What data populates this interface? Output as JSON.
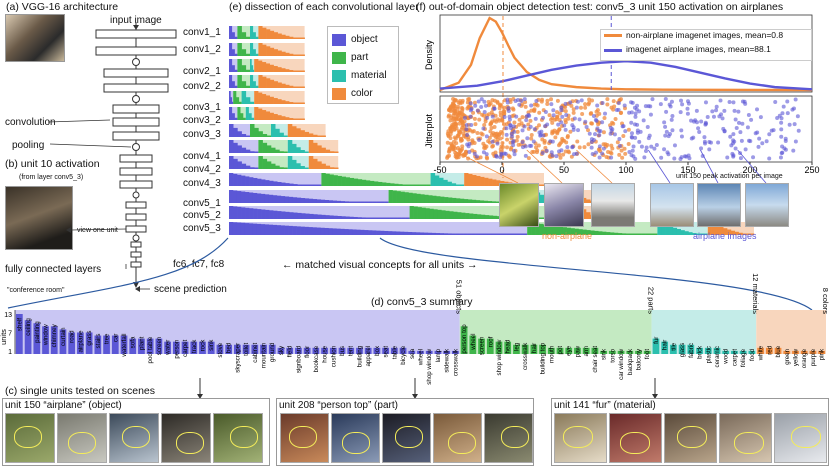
{
  "colors": {
    "object": "#5b57d6",
    "object_light": "#c9c6f3",
    "part": "#3fb54a",
    "part_light": "#c4eac2",
    "material": "#2bbfae",
    "material_light": "#c4ece8",
    "color": "#f08a3c",
    "color_light": "#f8d6bd",
    "curve": "#2c5aa0"
  },
  "panel_a": {
    "title": "(a) VGG-16 architecture",
    "input_label": "input image",
    "convolution_label": "convolution",
    "pooling_label": "pooling",
    "layers": [
      "conv1_1",
      "conv1_2",
      "conv2_1",
      "conv2_2",
      "conv3_1",
      "conv3_2",
      "conv3_3",
      "conv4_1",
      "conv4_2",
      "conv4_3",
      "conv5_1",
      "conv5_2",
      "conv5_3"
    ],
    "fc_label": "fully connected layers",
    "fc_names": "fc6, fc7, fc8",
    "scene_label": "scene prediction",
    "scene_value": "\"conference room\""
  },
  "panel_b": {
    "title": "(b) unit 10 activation",
    "subtitle": "(from layer conv5_3)",
    "view_label": "view one unit"
  },
  "panel_e": {
    "title": "(e) dissection of each convolutional layer",
    "legend": [
      "object",
      "part",
      "material",
      "color"
    ],
    "caption": "← matched visual concepts for all units →",
    "bars": [
      {
        "object": 0.02,
        "part": 0.03,
        "material": 0.02,
        "color": 0.11
      },
      {
        "object": 0.02,
        "part": 0.03,
        "material": 0.02,
        "color": 0.11
      },
      {
        "object": 0.02,
        "part": 0.03,
        "material": 0.01,
        "color": 0.12
      },
      {
        "object": 0.02,
        "part": 0.03,
        "material": 0.02,
        "color": 0.11
      },
      {
        "object": 0.01,
        "part": 0.02,
        "material": 0.03,
        "color": 0.12
      },
      {
        "object": 0.02,
        "part": 0.02,
        "material": 0.02,
        "color": 0.12
      },
      {
        "object": 0.05,
        "part": 0.05,
        "material": 0.04,
        "color": 0.09
      },
      {
        "object": 0.07,
        "part": 0.07,
        "material": 0.05,
        "color": 0.07
      },
      {
        "object": 0.07,
        "part": 0.07,
        "material": 0.05,
        "color": 0.07
      },
      {
        "object": 0.22,
        "part": 0.26,
        "material": 0.08,
        "color": 0.19
      },
      {
        "object": 0.38,
        "part": 0.34,
        "material": 0.08,
        "color": 0.09
      },
      {
        "object": 0.43,
        "part": 0.34,
        "material": 0.06,
        "color": 0.06
      },
      {
        "object": 0.71,
        "part": 0.31,
        "material": 0.12,
        "color": 0.11
      }
    ]
  },
  "panel_f": {
    "title": "(f) out-of-domain object detection test: conv5_3 unit 150 activation on airplanes",
    "density_label": "Density",
    "jitter_label": "Jitterplot",
    "legend": [
      "non-airplane imagenet images, mean=0.8",
      "imagenet airplane images, mean=88.1"
    ],
    "x_ticks": [
      "-50",
      "0",
      "50",
      "100",
      "150",
      "200",
      "250"
    ],
    "x_caption": "unit 150 peak activation per image",
    "non_airplane_label": "non-airplane",
    "airplane_label": "airplane images"
  },
  "panel_d": {
    "title": "(d) conv5_3 summary",
    "ylabel": "units",
    "y_ticks": [
      "13",
      "7",
      "1"
    ],
    "group_labels": [
      "51 objects",
      "22 parts",
      "12 materials",
      "8 colors"
    ],
    "objects": [
      {
        "label": "shelf",
        "units": 13
      },
      {
        "label": "ceiling",
        "units": 11
      },
      {
        "label": "painting",
        "units": 10
      },
      {
        "label": "window",
        "units": 9
      },
      {
        "label": "chimney",
        "units": 9
      },
      {
        "label": "curtain",
        "units": 8
      },
      {
        "label": "road",
        "units": 7
      },
      {
        "label": "airplane",
        "units": 7
      },
      {
        "label": "grass",
        "units": 7
      },
      {
        "label": "stairs",
        "units": 6
      },
      {
        "label": "tree",
        "units": 6
      },
      {
        "label": "car",
        "units": 6
      },
      {
        "label": "waterfall",
        "units": 6
      },
      {
        "label": "sofa",
        "units": 5
      },
      {
        "label": "plant",
        "units": 5
      },
      {
        "label": "pool table",
        "units": 5
      },
      {
        "label": "screen",
        "units": 5
      },
      {
        "label": "water",
        "units": 4
      },
      {
        "label": "person",
        "units": 4
      },
      {
        "label": "carpet",
        "units": 4
      },
      {
        "label": "track",
        "units": 4
      },
      {
        "label": "rock",
        "units": 4
      },
      {
        "label": "sink",
        "units": 4
      },
      {
        "label": "stove",
        "units": 3
      },
      {
        "label": "bed",
        "units": 3
      },
      {
        "label": "skyscraper",
        "units": 3
      },
      {
        "label": "toilet",
        "units": 3
      },
      {
        "label": "cabinet",
        "units": 3
      },
      {
        "label": "mountain",
        "units": 3
      },
      {
        "label": "ground",
        "units": 3
      },
      {
        "label": "sky",
        "units": 2
      },
      {
        "label": "field",
        "units": 2
      },
      {
        "label": "signboard",
        "units": 2
      },
      {
        "label": "floor",
        "units": 2
      },
      {
        "label": "bookcase",
        "units": 2
      },
      {
        "label": "house",
        "units": 2
      },
      {
        "label": "cushion",
        "units": 2
      },
      {
        "label": "bus",
        "units": 2
      },
      {
        "label": "tent",
        "units": 2
      },
      {
        "label": "building",
        "units": 2
      },
      {
        "label": "apparel",
        "units": 2
      },
      {
        "label": "box",
        "units": 2
      },
      {
        "label": "seat",
        "units": 2
      },
      {
        "label": "table",
        "units": 2
      },
      {
        "label": "bicycle",
        "units": 2
      },
      {
        "label": "sea",
        "units": 1
      },
      {
        "label": "wheel",
        "units": 1
      },
      {
        "label": "shop window",
        "units": 1
      },
      {
        "label": "lamp",
        "units": 1
      },
      {
        "label": "sidewalk",
        "units": 1
      },
      {
        "label": "crosswalk",
        "units": 1
      }
    ],
    "parts": [
      {
        "label": "person top",
        "units": 9
      },
      {
        "label": "wheel",
        "units": 6
      },
      {
        "label": "screen",
        "units": 5
      },
      {
        "label": "roof",
        "units": 5
      },
      {
        "label": "shop window",
        "units": 4
      },
      {
        "label": "head",
        "units": 4
      },
      {
        "label": "leg",
        "units": 3
      },
      {
        "label": "crosswalk",
        "units": 3
      },
      {
        "label": "hair",
        "units": 3
      },
      {
        "label": "building top",
        "units": 3
      },
      {
        "label": "mouth",
        "units": 2
      },
      {
        "label": "pot",
        "units": 2
      },
      {
        "label": "eye",
        "units": 2
      },
      {
        "label": "paw",
        "units": 2
      },
      {
        "label": "arm",
        "units": 2
      },
      {
        "label": "chair seat",
        "units": 2
      },
      {
        "label": "sink",
        "units": 1
      },
      {
        "label": "torso",
        "units": 1
      },
      {
        "label": "car window",
        "units": 1
      },
      {
        "label": "backpack",
        "units": 1
      },
      {
        "label": "balcony",
        "units": 1
      },
      {
        "label": "foot",
        "units": 1
      }
    ],
    "materials": [
      {
        "label": "fur",
        "units": 5
      },
      {
        "label": "hair",
        "units": 4
      },
      {
        "label": "tile",
        "units": 3
      },
      {
        "label": "glass",
        "units": 3
      },
      {
        "label": "fabric",
        "units": 3
      },
      {
        "label": "brick",
        "units": 2
      },
      {
        "label": "plastic",
        "units": 2
      },
      {
        "label": "ceramic",
        "units": 2
      },
      {
        "label": "wood",
        "units": 1
      },
      {
        "label": "carpet",
        "units": 1
      },
      {
        "label": "foliage",
        "units": 1
      },
      {
        "label": "food",
        "units": 1
      }
    ],
    "colors": [
      {
        "label": "white",
        "units": 2
      },
      {
        "label": "red",
        "units": 2
      },
      {
        "label": "blue",
        "units": 2
      },
      {
        "label": "green",
        "units": 1
      },
      {
        "label": "yellow",
        "units": 1
      },
      {
        "label": "orange",
        "units": 1
      },
      {
        "label": "purple",
        "units": 1
      },
      {
        "label": "pink",
        "units": 1
      }
    ]
  },
  "panel_c": {
    "title": "(c) single units tested on scenes",
    "units": [
      {
        "label": "unit 150 “airplane” (object)"
      },
      {
        "label": "unit 208 “person top” (part)"
      },
      {
        "label": "unit 141 “fur” (material)"
      }
    ]
  },
  "chart_data": [
    {
      "type": "bar",
      "title": "(e) dissection of each convolutional layer",
      "categories": [
        "conv1_1",
        "conv1_2",
        "conv2_1",
        "conv2_2",
        "conv3_1",
        "conv3_2",
        "conv3_3",
        "conv4_1",
        "conv4_2",
        "conv4_3",
        "conv5_1",
        "conv5_2",
        "conv5_3"
      ],
      "series": [
        {
          "name": "object",
          "values": [
            0.02,
            0.02,
            0.02,
            0.02,
            0.01,
            0.02,
            0.05,
            0.07,
            0.07,
            0.22,
            0.38,
            0.43,
            0.71
          ]
        },
        {
          "name": "part",
          "values": [
            0.03,
            0.03,
            0.03,
            0.03,
            0.02,
            0.02,
            0.05,
            0.07,
            0.07,
            0.26,
            0.34,
            0.34,
            0.31
          ]
        },
        {
          "name": "material",
          "values": [
            0.02,
            0.02,
            0.01,
            0.02,
            0.03,
            0.02,
            0.04,
            0.05,
            0.05,
            0.08,
            0.08,
            0.06,
            0.12
          ]
        },
        {
          "name": "color",
          "values": [
            0.11,
            0.11,
            0.12,
            0.11,
            0.12,
            0.12,
            0.09,
            0.07,
            0.07,
            0.19,
            0.09,
            0.06,
            0.11
          ]
        }
      ]
    },
    {
      "type": "line",
      "title": "(f) out-of-domain object detection test: conv5_3 unit 150 activation on airplanes",
      "xlabel": "unit 150 peak activation per image",
      "ylabel": "Density",
      "xlim": [
        -50,
        250
      ],
      "series": [
        {
          "name": "non-airplane imagenet images, mean=0.8",
          "mean": 0.8,
          "x": [
            -50,
            -35,
            -25,
            -18,
            -10,
            -5,
            0,
            5,
            10,
            20,
            30,
            40,
            60,
            80,
            100,
            130,
            160,
            250
          ],
          "y": [
            0.0,
            0.1,
            0.35,
            0.72,
            1.0,
            0.95,
            0.8,
            0.62,
            0.45,
            0.25,
            0.14,
            0.08,
            0.04,
            0.02,
            0.01,
            0.005,
            0.002,
            0.0
          ]
        },
        {
          "name": "imagenet airplane images, mean=88.1",
          "mean": 88.1,
          "x": [
            -50,
            -20,
            0,
            20,
            40,
            60,
            80,
            100,
            120,
            140,
            160,
            180,
            200,
            220,
            250
          ],
          "y": [
            0.02,
            0.06,
            0.12,
            0.2,
            0.28,
            0.34,
            0.38,
            0.4,
            0.38,
            0.32,
            0.24,
            0.16,
            0.09,
            0.04,
            0.01
          ]
        }
      ]
    }
  ]
}
